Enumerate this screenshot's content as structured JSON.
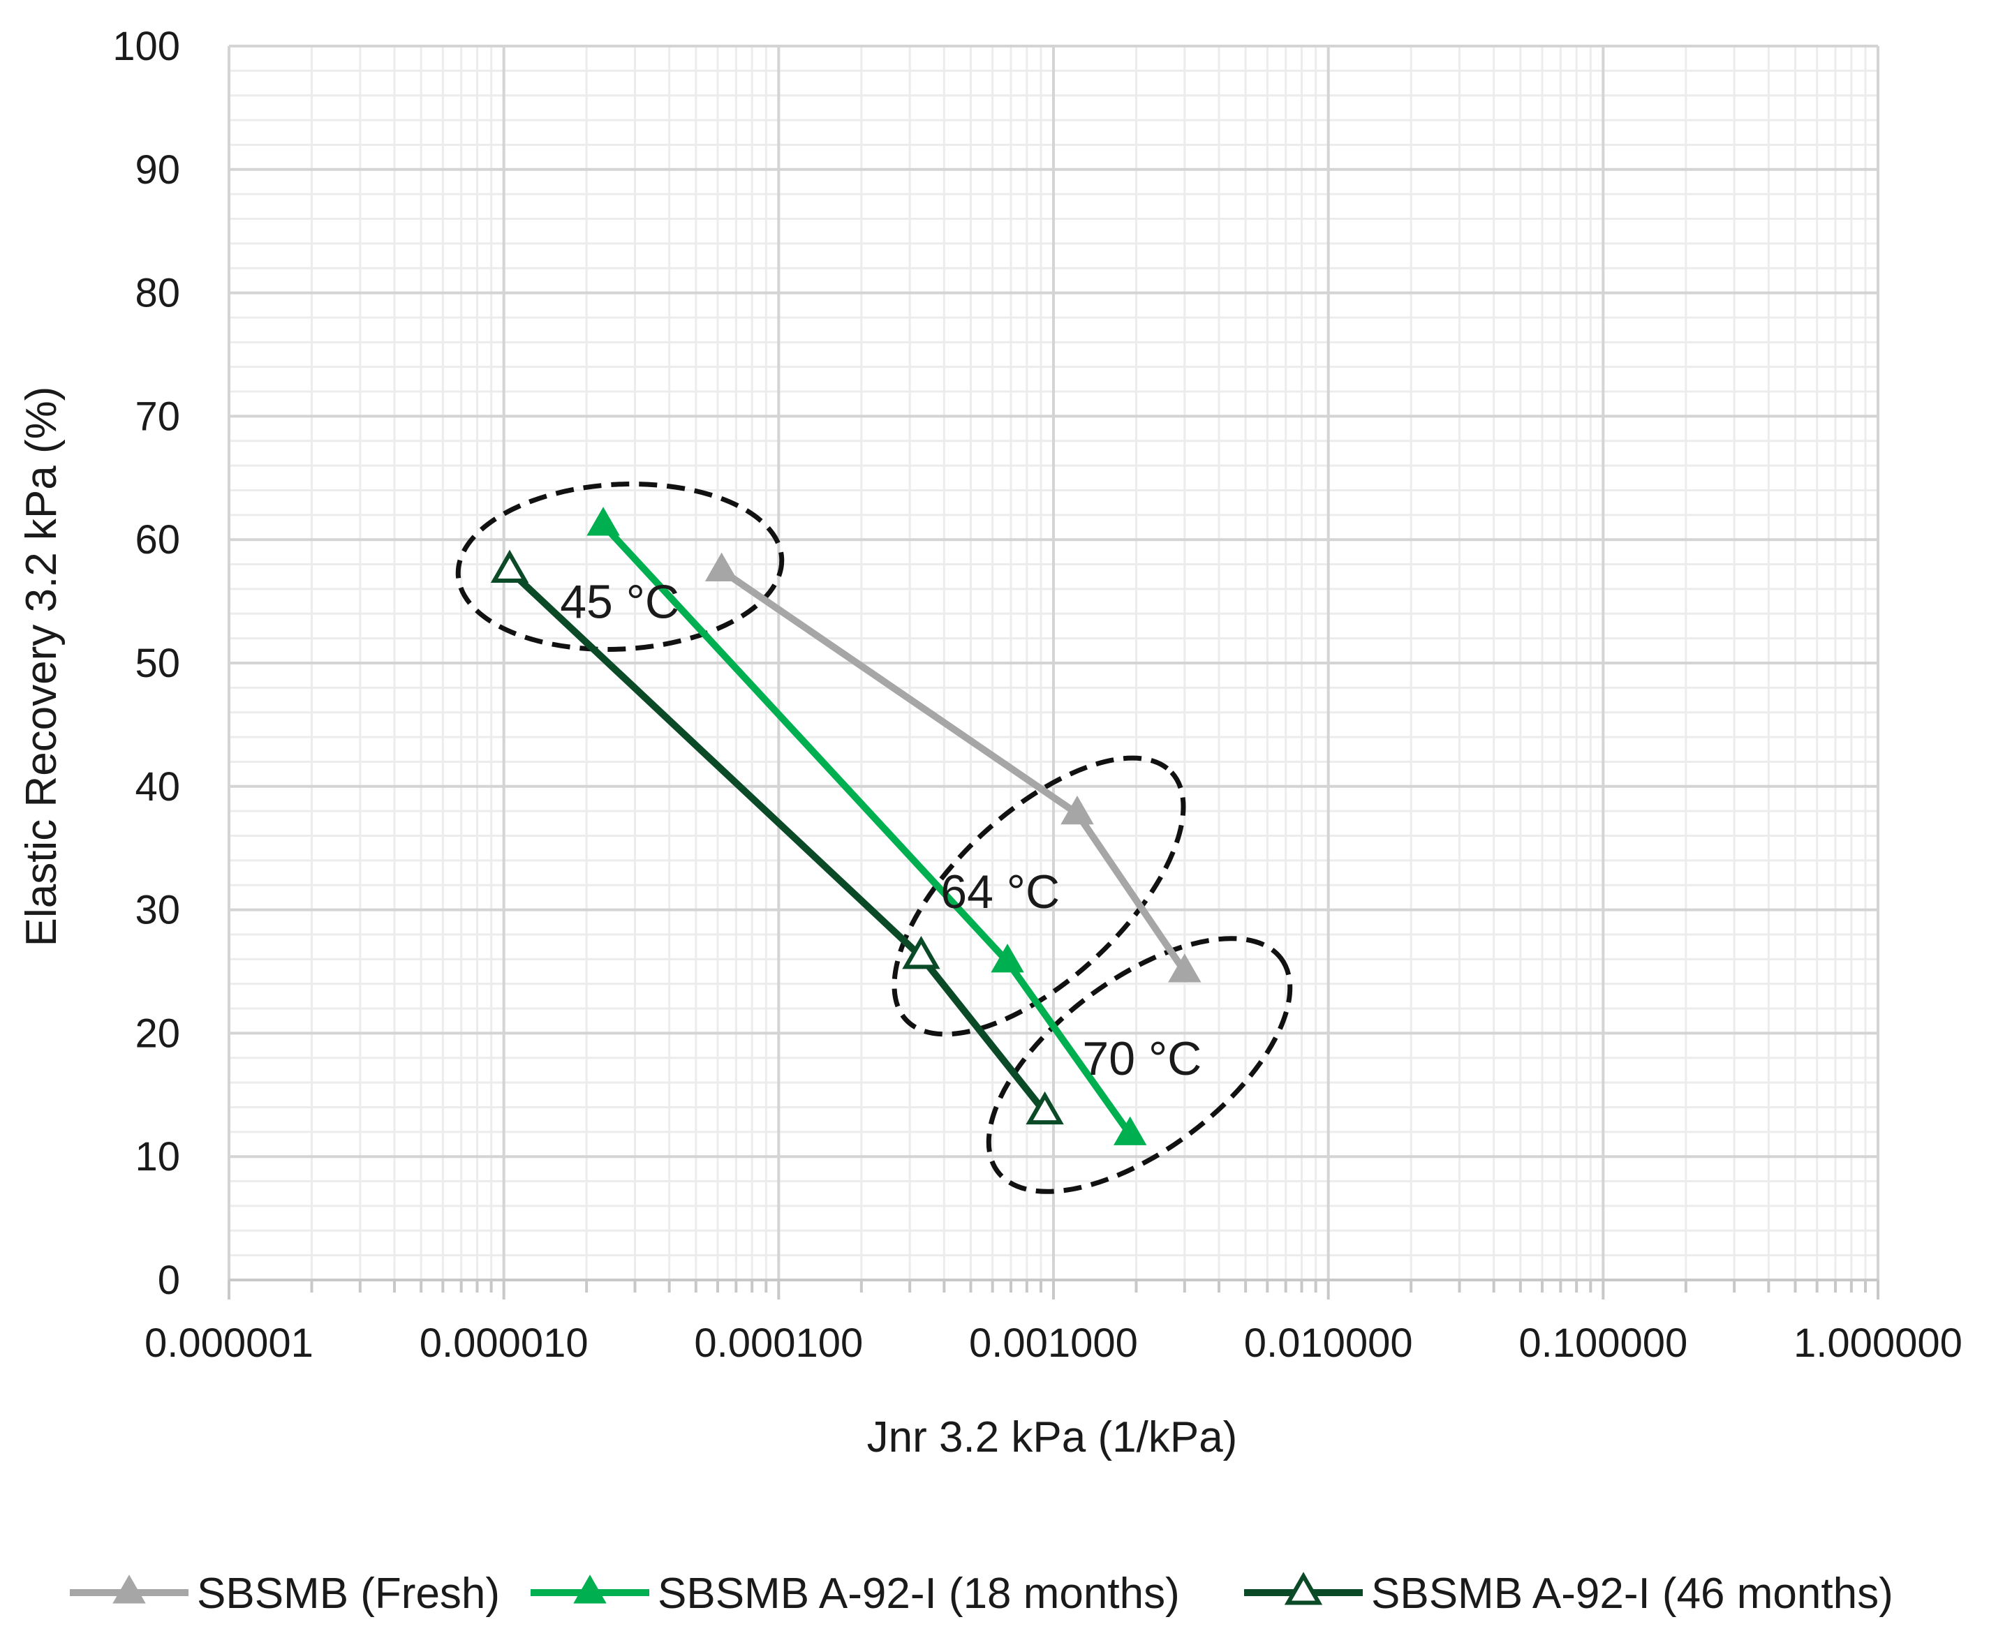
{
  "chart_data": {
    "type": "line",
    "xscale": "log",
    "xlabel": "Jnr 3.2 kPa (1/kPa)",
    "ylabel": "Elastic Recovery 3.2 kPa (%)",
    "xlim": [
      1e-06,
      1.0
    ],
    "ylim": [
      0,
      100
    ],
    "grid": true,
    "legend_position": "bottom",
    "x_ticks": [
      1e-06,
      1e-05,
      0.0001,
      0.001,
      0.01,
      0.1,
      1.0
    ],
    "x_tick_labels": [
      "0.000001",
      "0.000010",
      "0.000100",
      "0.001000",
      "0.010000",
      "0.100000",
      "1.000000"
    ],
    "y_ticks": [
      0,
      10,
      20,
      30,
      40,
      50,
      60,
      70,
      80,
      90,
      100
    ],
    "y_tick_labels": [
      "0",
      "10",
      "20",
      "30",
      "40",
      "50",
      "60",
      "70",
      "80",
      "90",
      "100"
    ],
    "series": [
      {
        "name": "SBSMB (Fresh)",
        "color": "#a6a6a6",
        "marker": "triangle-filled",
        "points": [
          [
            6.2e-05,
            57.5
          ],
          [
            0.00122,
            37.8
          ],
          [
            0.003,
            25.0
          ]
        ]
      },
      {
        "name": "SBSMB A-92-I (18 months)",
        "color": "#00b050",
        "marker": "triangle-filled",
        "points": [
          [
            2.3e-05,
            61.2
          ],
          [
            0.00068,
            25.8
          ],
          [
            0.0019,
            11.8
          ]
        ]
      },
      {
        "name": "SBSMB A-92-I (46 months)",
        "color": "#0b4a26",
        "marker": "triangle-open",
        "points": [
          [
            1.05e-05,
            57.5
          ],
          [
            0.00033,
            26.2
          ],
          [
            0.00093,
            13.6
          ]
        ]
      }
    ],
    "annotations": [
      {
        "text": "45 °C",
        "x": 2.64e-05,
        "y": 55.0
      },
      {
        "text": "64 °C",
        "x": 0.00064,
        "y": 31.5
      },
      {
        "text": "70 °C",
        "x": 0.0021,
        "y": 18.0
      }
    ]
  }
}
